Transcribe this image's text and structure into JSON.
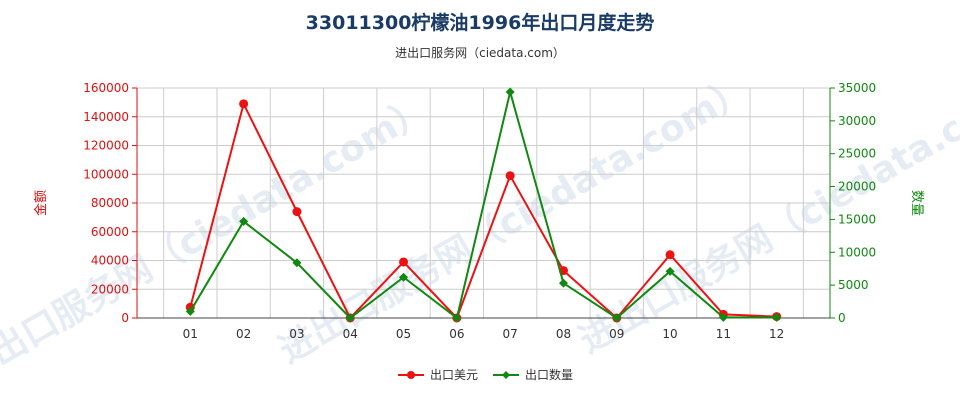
{
  "title": "33011300柠檬油1996年出口月度走势",
  "subtitle": "进出口服务网（ciedata.com）",
  "watermark": "进出口服务网（ciedata.com）",
  "colors": {
    "left_axis": "#dd1111",
    "right_axis": "#118811",
    "series_usd": "#ee1111",
    "series_qty": "#118811",
    "grid": "#cccccc"
  },
  "chart_data": {
    "type": "line",
    "categories": [
      "01",
      "02",
      "03",
      "04",
      "05",
      "06",
      "07",
      "08",
      "09",
      "10",
      "11",
      "12"
    ],
    "ylabel_left": "金额",
    "ylabel_right": "数量",
    "ylim_left": [
      0,
      160000
    ],
    "ylim_right": [
      0,
      35000
    ],
    "yticks_left": [
      "0",
      "20000",
      "40000",
      "60000",
      "80000",
      "100000",
      "120000",
      "140000",
      "160000"
    ],
    "yticks_right": [
      "0",
      "5000",
      "10000",
      "15000",
      "20000",
      "25000",
      "30000",
      "35000"
    ],
    "grid": true,
    "legend_position": "bottom",
    "series": [
      {
        "name": "出口美元",
        "axis": "left",
        "color": "#ee1111",
        "marker": "circle",
        "values": [
          7500,
          149000,
          74000,
          0,
          39000,
          0,
          99000,
          33000,
          0,
          44000,
          2500,
          1000
        ]
      },
      {
        "name": "出口数量",
        "axis": "right",
        "color": "#118811",
        "marker": "diamond",
        "values": [
          1000,
          14700,
          8400,
          0,
          6200,
          0,
          34400,
          5300,
          0,
          7100,
          100,
          100
        ]
      }
    ]
  }
}
